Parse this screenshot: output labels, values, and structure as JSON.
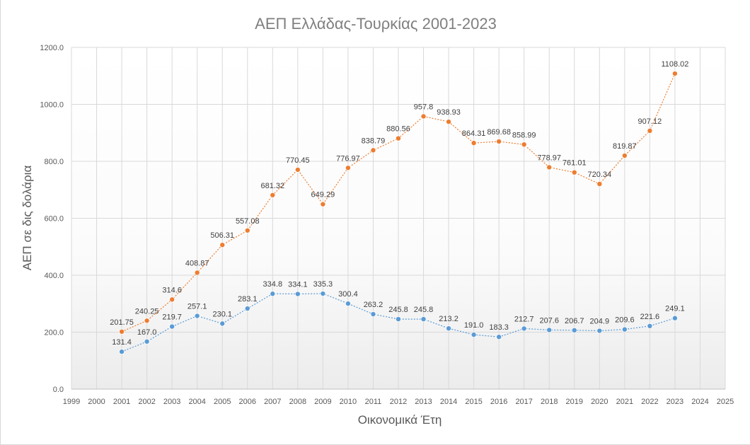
{
  "chart_data": {
    "type": "line",
    "title": "ΑΕΠ Ελλάδας-Τουρκίας 2001-2023",
    "xlabel": "Οικονομικά Έτη",
    "ylabel": "ΑΕΠ σε δις  δολάρια",
    "xlim": [
      1999,
      2025
    ],
    "ylim": [
      0,
      1200
    ],
    "y_ticks": [
      "0.0",
      "200.0",
      "400.0",
      "600.0",
      "800.0",
      "1000.0",
      "1200.0"
    ],
    "x_ticks": [
      "1999",
      "2000",
      "2001",
      "2002",
      "2003",
      "2004",
      "2005",
      "2006",
      "2007",
      "2008",
      "2009",
      "2010",
      "2011",
      "2012",
      "2013",
      "2014",
      "2015",
      "2016",
      "2017",
      "2018",
      "2019",
      "2020",
      "2021",
      "2022",
      "2023",
      "2024",
      "2025"
    ],
    "grid": true,
    "legend": "none",
    "x": [
      2001,
      2002,
      2003,
      2004,
      2005,
      2006,
      2007,
      2008,
      2009,
      2010,
      2011,
      2012,
      2013,
      2014,
      2015,
      2016,
      2017,
      2018,
      2019,
      2020,
      2021,
      2022,
      2023
    ],
    "series": [
      {
        "color": "#ed7d31",
        "values": [
          201.75,
          240.25,
          314.6,
          408.87,
          506.31,
          557.08,
          681.32,
          770.45,
          649.29,
          776.97,
          838.79,
          880.56,
          957.8,
          938.93,
          864.31,
          869.68,
          858.99,
          778.97,
          761.01,
          720.34,
          819.87,
          907.12,
          1108.02
        ],
        "labels": [
          "201.75",
          "240.25",
          "314.6",
          "408.87",
          "506.31",
          "557.08",
          "681.32",
          "770.45",
          "649.29",
          "776.97",
          "838.79",
          "880.56",
          "957.8",
          "938.93",
          "864.31",
          "869.68",
          "858.99",
          "778.97",
          "761.01",
          "720.34",
          "819.87",
          "907.12",
          "1108.02"
        ]
      },
      {
        "color": "#5b9bd5",
        "values": [
          131.4,
          167.0,
          219.7,
          257.1,
          230.1,
          283.1,
          334.8,
          334.1,
          335.3,
          300.4,
          263.2,
          245.8,
          245.8,
          213.2,
          191.0,
          183.3,
          212.7,
          207.6,
          206.7,
          204.9,
          209.6,
          221.6,
          249.1
        ],
        "labels": [
          "131.4",
          "167.0",
          "219.7",
          "257.1",
          "230.1",
          "283.1",
          "334.8",
          "334.1",
          "335.3",
          "300.4",
          "263.2",
          "245.8",
          "245.8",
          "213.2",
          "191.0",
          "183.3",
          "212.7",
          "207.6",
          "206.7",
          "204.9",
          "209.6",
          "221.6",
          "249.1"
        ]
      }
    ]
  }
}
